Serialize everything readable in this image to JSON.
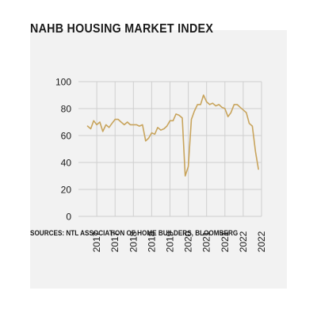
{
  "chart_data": {
    "type": "line",
    "title": "NAHB HOUSING MARKET INDEX",
    "source": "SOURCES: NTL ASSOCIATION OF HOME BUILDERS, BLOOMBERG",
    "xlabel": "",
    "ylabel": "",
    "ylim": [
      0,
      100
    ],
    "y_ticks": [
      0,
      20,
      40,
      60,
      80,
      100
    ],
    "x_tick_labels": [
      "2017",
      "2017",
      "2018",
      "2018",
      "2019",
      "2020",
      "2021",
      "2021",
      "2022",
      "2022"
    ],
    "grid": true,
    "line_color": "#c8a45c",
    "series": [
      {
        "x": [
          2016.5,
          2016.67,
          2016.83,
          2017.0,
          2017.17,
          2017.33,
          2017.5,
          2017.67,
          2017.83,
          2018.0,
          2018.17,
          2018.33,
          2018.5,
          2018.67,
          2018.83,
          2019.0,
          2019.17,
          2019.33,
          2019.5,
          2019.67,
          2019.83,
          2020.0,
          2020.17,
          2020.33,
          2020.5,
          2020.67,
          2020.83,
          2021.0,
          2021.17,
          2021.33,
          2021.5,
          2021.67,
          2021.83,
          2022.0,
          2022.17,
          2022.33,
          2022.5,
          2022.67,
          2022.83,
          2023.0,
          2023.17,
          2023.33,
          2023.5,
          2023.67,
          2023.83,
          2024.0,
          2024.17,
          2024.33,
          2024.5,
          2024.67,
          2024.83,
          2025.0,
          2025.17,
          2025.33,
          2025.5,
          2025.67,
          2025.83
        ],
        "values": [
          67,
          65,
          71,
          68,
          70,
          63,
          68,
          66,
          69,
          72,
          72,
          70,
          68,
          70,
          68,
          68,
          68,
          67,
          68,
          56,
          58,
          62,
          61,
          66,
          64,
          65,
          67,
          71,
          71,
          76,
          75,
          73,
          30,
          37,
          72,
          78,
          83,
          83,
          90,
          85,
          83,
          84,
          82,
          83,
          81,
          80,
          74,
          77,
          83,
          83,
          81,
          79,
          77,
          69,
          67,
          48,
          35
        ]
      }
    ]
  }
}
